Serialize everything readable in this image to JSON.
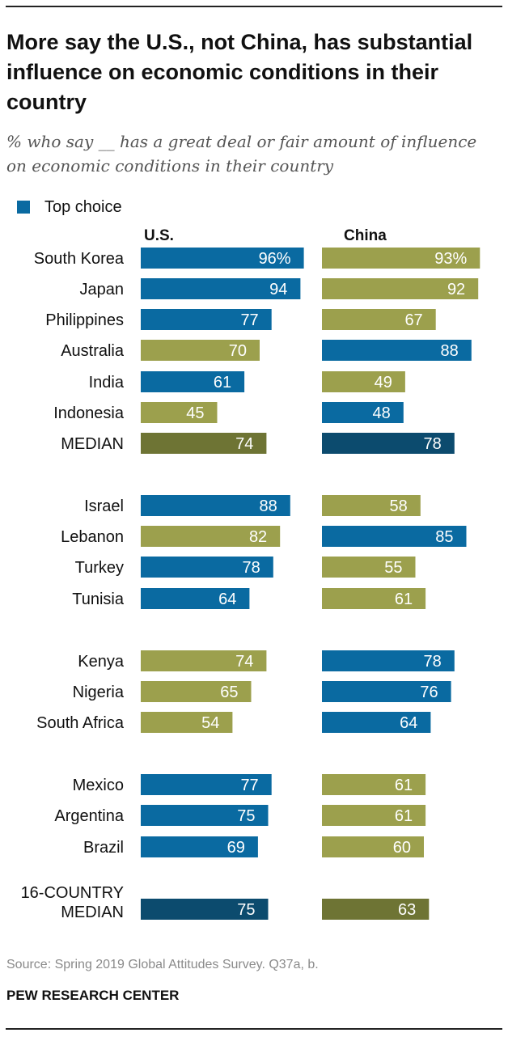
{
  "title": "More say the U.S., not China, has substantial influence on economic conditions in their country",
  "subtitle": "% who say __ has a great deal or fair amount of influence on economic conditions in their country",
  "legend": {
    "label": "Top choice"
  },
  "source": "Source: Spring 2019 Global Attitudes Survey. Q37a, b.",
  "org": "PEW RESEARCH CENTER",
  "colors": {
    "top_choice": "#0a6aa1",
    "other": "#9ca04d",
    "median_top": "#0c4b6e",
    "median_other": "#6e7434"
  },
  "chart_data": {
    "type": "bar",
    "orientation": "horizontal",
    "xlim": [
      0,
      100
    ],
    "series": [
      {
        "name": "U.S.",
        "values": [
          96,
          94,
          77,
          70,
          61,
          45,
          74,
          88,
          82,
          78,
          64,
          74,
          65,
          54,
          77,
          75,
          69,
          75
        ]
      },
      {
        "name": "China",
        "values": [
          93,
          92,
          67,
          88,
          49,
          48,
          78,
          58,
          85,
          55,
          61,
          78,
          76,
          64,
          61,
          61,
          60,
          63
        ]
      }
    ],
    "rows": [
      {
        "label": "South Korea",
        "us": 96,
        "us_label": "96%",
        "china": 93,
        "china_label": "93%",
        "top": "us"
      },
      {
        "label": "Japan",
        "us": 94,
        "us_label": "94",
        "china": 92,
        "china_label": "92",
        "top": "us"
      },
      {
        "label": "Philippines",
        "us": 77,
        "us_label": "77",
        "china": 67,
        "china_label": "67",
        "top": "us"
      },
      {
        "label": "Australia",
        "us": 70,
        "us_label": "70",
        "china": 88,
        "china_label": "88",
        "top": "china"
      },
      {
        "label": "India",
        "us": 61,
        "us_label": "61",
        "china": 49,
        "china_label": "49",
        "top": "us"
      },
      {
        "label": "Indonesia",
        "us": 45,
        "us_label": "45",
        "china": 48,
        "china_label": "48",
        "top": "china"
      },
      {
        "label": "MEDIAN",
        "us": 74,
        "us_label": "74",
        "china": 78,
        "china_label": "78",
        "top": "china",
        "median": true
      },
      {
        "label": "Israel",
        "us": 88,
        "us_label": "88",
        "china": 58,
        "china_label": "58",
        "top": "us"
      },
      {
        "label": "Lebanon",
        "us": 82,
        "us_label": "82",
        "china": 85,
        "china_label": "85",
        "top": "china"
      },
      {
        "label": "Turkey",
        "us": 78,
        "us_label": "78",
        "china": 55,
        "china_label": "55",
        "top": "us"
      },
      {
        "label": "Tunisia",
        "us": 64,
        "us_label": "64",
        "china": 61,
        "china_label": "61",
        "top": "us"
      },
      {
        "label": "Kenya",
        "us": 74,
        "us_label": "74",
        "china": 78,
        "china_label": "78",
        "top": "china"
      },
      {
        "label": "Nigeria",
        "us": 65,
        "us_label": "65",
        "china": 76,
        "china_label": "76",
        "top": "china"
      },
      {
        "label": "South Africa",
        "us": 54,
        "us_label": "54",
        "china": 64,
        "china_label": "64",
        "top": "china"
      },
      {
        "label": "Mexico",
        "us": 77,
        "us_label": "77",
        "china": 61,
        "china_label": "61",
        "top": "us"
      },
      {
        "label": "Argentina",
        "us": 75,
        "us_label": "75",
        "china": 61,
        "china_label": "61",
        "top": "us"
      },
      {
        "label": "Brazil",
        "us": 69,
        "us_label": "69",
        "china": 60,
        "china_label": "60",
        "top": "us"
      },
      {
        "label": "16-COUNTRY MEDIAN",
        "label_lines": [
          "16-COUNTRY",
          "MEDIAN"
        ],
        "us": 75,
        "us_label": "75",
        "china": 63,
        "china_label": "63",
        "top": "us",
        "median": true
      }
    ]
  }
}
